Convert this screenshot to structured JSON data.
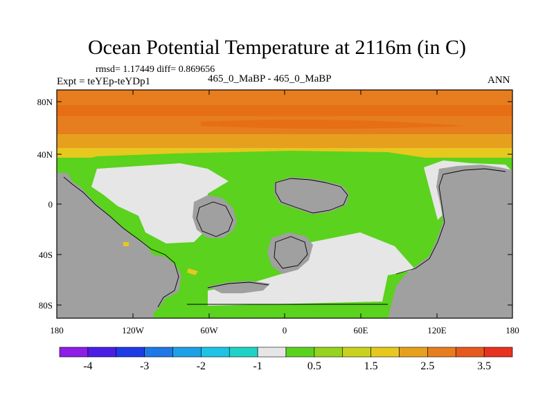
{
  "title": "Ocean Potential Temperature at 2116m (in C)",
  "stats": "rmsd= 1.17449 diff= 0.869656",
  "expt": "Expt = teYEp-teYDp1",
  "case": "465_0_MaBP - 465_0_MaBP",
  "season": "ANN",
  "lat_labels": [
    "80N",
    "40N",
    "0",
    "40S",
    "80S"
  ],
  "lon_labels": [
    "180",
    "120W",
    "60W",
    "0",
    "60E",
    "120E",
    "180"
  ],
  "colorbar": {
    "colors": [
      "#8c1ee6",
      "#4b1ee6",
      "#1e3ce6",
      "#1e78e6",
      "#1ea0e6",
      "#1ec3e6",
      "#1ed2c8",
      "#e6e6e6",
      "#5ad21e",
      "#96d21e",
      "#c8d21e",
      "#e6c81e",
      "#e6a01e",
      "#e67d1e",
      "#e65a1e",
      "#e6321e"
    ],
    "labels": [
      "-4",
      "-3",
      "-2",
      "-1",
      "0.5",
      "1.5",
      "2.5",
      "3.5"
    ]
  },
  "colors": {
    "land": "#a0a0a0",
    "near_zero": "#e6e6e6",
    "green": "#5ad21e",
    "orange_light": "#e6a01e",
    "orange": "#e67d1e",
    "orange_dark": "#e66e14",
    "yellow": "#e6c81e"
  }
}
